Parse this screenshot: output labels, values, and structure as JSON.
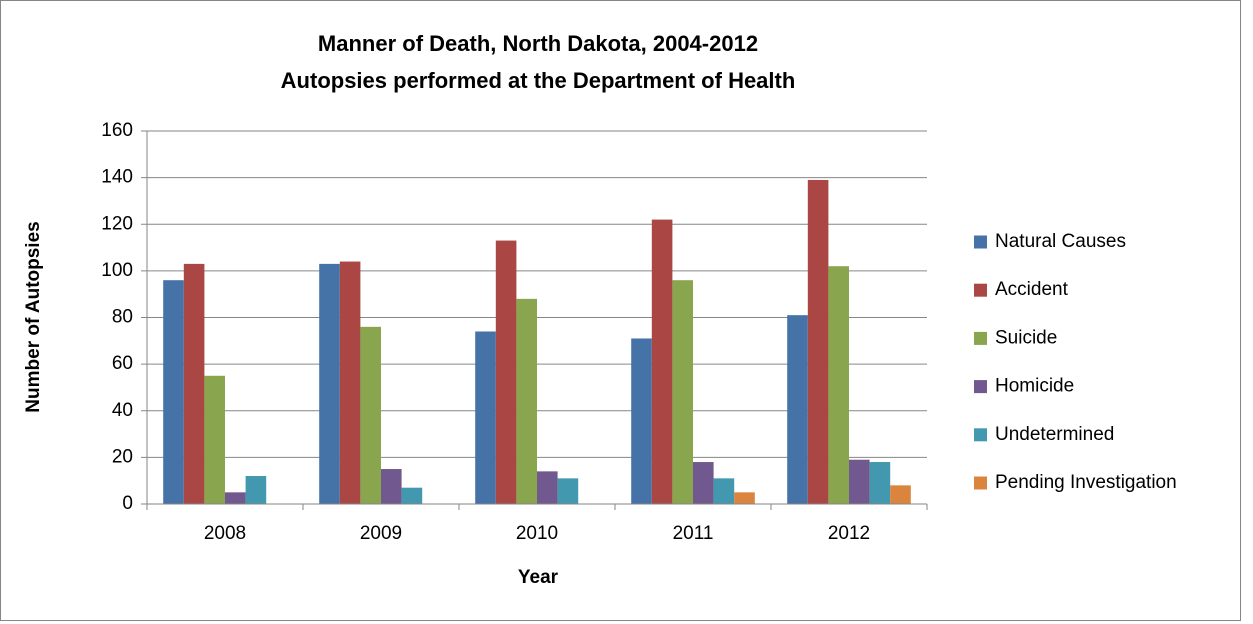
{
  "chart_data": {
    "type": "bar",
    "title": [
      "Manner of Death, North Dakota, 2004-2012",
      "Autopsies performed at the Department of Health"
    ],
    "x_label": "Year",
    "y_label": "Number of Autopsies",
    "categories": [
      "2008",
      "2009",
      "2010",
      "2011",
      "2012"
    ],
    "series": [
      {
        "name": "Natural Causes",
        "color": "#4572a7",
        "values": [
          96,
          103,
          74,
          71,
          81
        ]
      },
      {
        "name": "Accident",
        "color": "#aa4643",
        "values": [
          103,
          104,
          113,
          122,
          139
        ]
      },
      {
        "name": "Suicide",
        "color": "#89a54e",
        "values": [
          55,
          76,
          88,
          96,
          102
        ]
      },
      {
        "name": "Homicide",
        "color": "#71588f",
        "values": [
          5,
          15,
          14,
          18,
          19
        ]
      },
      {
        "name": "Undetermined",
        "color": "#4198af",
        "values": [
          12,
          7,
          11,
          11,
          18
        ]
      },
      {
        "name": "Pending Investigation",
        "color": "#db843d",
        "values": [
          0,
          0,
          0,
          5,
          8
        ]
      }
    ],
    "ylim": [
      0,
      160
    ],
    "yticks": [
      0,
      20,
      40,
      60,
      80,
      100,
      120,
      140,
      160
    ],
    "grid": true,
    "legend": "right"
  }
}
